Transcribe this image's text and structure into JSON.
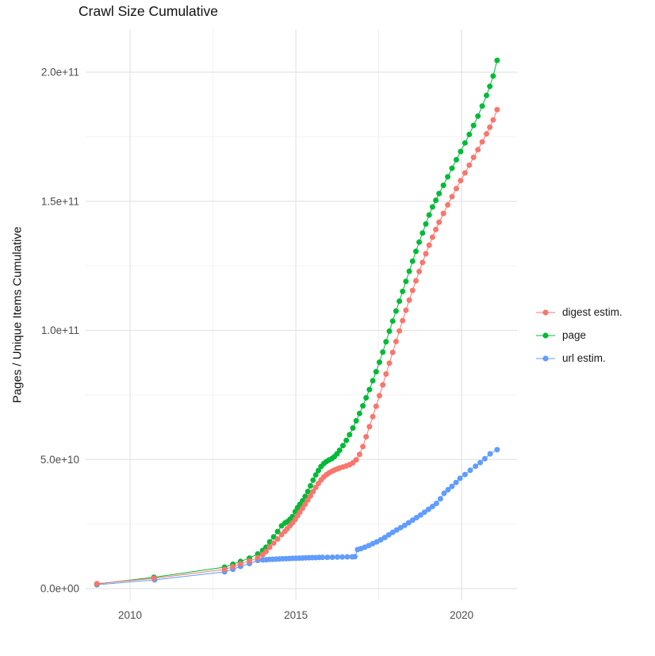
{
  "title": "Crawl Size Cumulative",
  "y_axis_title": "Pages / Unique Items Cumulative",
  "chart_data": {
    "type": "line",
    "title": "Crawl Size Cumulative",
    "xlabel": "",
    "ylabel": "Pages / Unique Items Cumulative",
    "value_unit": "y values in billions (1e9) of pages / unique items",
    "x_domain": [
      2008.66,
      2021.67
    ],
    "y_domain_e9": [
      -4.6,
      216.6
    ],
    "grid": true,
    "legend_position": "right",
    "x_ticks": [
      {
        "year": 2010,
        "label": "2010"
      },
      {
        "year": 2015,
        "label": "2015"
      },
      {
        "year": 2020,
        "label": "2020"
      }
    ],
    "x_minor": [
      2012.5,
      2017.5
    ],
    "y_ticks": [
      {
        "value_e9": 0,
        "label": "0.0e+00"
      },
      {
        "value_e9": 50,
        "label": "5.0e+10"
      },
      {
        "value_e9": 100,
        "label": "1.0e+11"
      },
      {
        "value_e9": 150,
        "label": "1.5e+11"
      },
      {
        "value_e9": 200,
        "label": "2.0e+11"
      }
    ],
    "y_minor": [
      25,
      75,
      125,
      175
    ],
    "draw_order": [
      2,
      1,
      0
    ],
    "series": [
      {
        "name": "digest estim.",
        "color": "#F8766D",
        "points": [
          [
            2009.0,
            1.9
          ],
          [
            2010.72,
            4.0
          ],
          [
            2012.85,
            7.4
          ],
          [
            2013.1,
            8.5
          ],
          [
            2013.33,
            9.6
          ],
          [
            2013.6,
            10.7
          ],
          [
            2013.85,
            11.9
          ],
          [
            2014.0,
            13.2
          ],
          [
            2014.1,
            14.4
          ],
          [
            2014.21,
            16.0
          ],
          [
            2014.33,
            17.6
          ],
          [
            2014.45,
            19.2
          ],
          [
            2014.57,
            20.9
          ],
          [
            2014.67,
            22.2
          ],
          [
            2014.74,
            23.2
          ],
          [
            2014.82,
            24.3
          ],
          [
            2014.9,
            25.5
          ],
          [
            2014.98,
            26.8
          ],
          [
            2015.05,
            28.2
          ],
          [
            2015.12,
            29.6
          ],
          [
            2015.2,
            31.1
          ],
          [
            2015.28,
            32.7
          ],
          [
            2015.36,
            34.3
          ],
          [
            2015.44,
            35.9
          ],
          [
            2015.52,
            37.6
          ],
          [
            2015.6,
            39.2
          ],
          [
            2015.68,
            40.7
          ],
          [
            2015.76,
            42.1
          ],
          [
            2015.84,
            43.2
          ],
          [
            2015.92,
            44.1
          ],
          [
            2016.0,
            44.8
          ],
          [
            2016.08,
            45.4
          ],
          [
            2016.16,
            45.9
          ],
          [
            2016.24,
            46.3
          ],
          [
            2016.32,
            46.7
          ],
          [
            2016.42,
            47.1
          ],
          [
            2016.52,
            47.5
          ],
          [
            2016.62,
            48.0
          ],
          [
            2016.72,
            48.7
          ],
          [
            2016.82,
            49.9
          ],
          [
            2016.92,
            52.0
          ],
          [
            2017.02,
            55.0
          ],
          [
            2017.12,
            58.8
          ],
          [
            2017.22,
            62.7
          ],
          [
            2017.32,
            66.6
          ],
          [
            2017.42,
            70.6
          ],
          [
            2017.52,
            74.7
          ],
          [
            2017.62,
            78.9
          ],
          [
            2017.72,
            83.1
          ],
          [
            2017.82,
            87.3
          ],
          [
            2017.92,
            91.5
          ],
          [
            2018.02,
            95.7
          ],
          [
            2018.12,
            99.8
          ],
          [
            2018.22,
            103.8
          ],
          [
            2018.32,
            107.8
          ],
          [
            2018.42,
            111.7
          ],
          [
            2018.52,
            115.5
          ],
          [
            2018.62,
            119.2
          ],
          [
            2018.72,
            122.8
          ],
          [
            2018.82,
            126.3
          ],
          [
            2018.92,
            129.7
          ],
          [
            2019.02,
            133.0
          ],
          [
            2019.12,
            136.1
          ],
          [
            2019.22,
            139.1
          ],
          [
            2019.32,
            141.9
          ],
          [
            2019.45,
            145.3
          ],
          [
            2019.58,
            148.6
          ],
          [
            2019.71,
            151.8
          ],
          [
            2019.84,
            154.9
          ],
          [
            2019.97,
            158.0
          ],
          [
            2020.1,
            161.0
          ],
          [
            2020.23,
            164.0
          ],
          [
            2020.36,
            167.0
          ],
          [
            2020.49,
            170.0
          ],
          [
            2020.62,
            173.0
          ],
          [
            2020.75,
            176.1
          ],
          [
            2020.85,
            178.7
          ],
          [
            2020.95,
            181.5
          ],
          [
            2021.07,
            185.5
          ]
        ]
      },
      {
        "name": "page",
        "color": "#00BA38",
        "points": [
          [
            2009.0,
            1.8
          ],
          [
            2010.72,
            4.4
          ],
          [
            2012.85,
            8.3
          ],
          [
            2013.1,
            9.4
          ],
          [
            2013.33,
            10.5
          ],
          [
            2013.6,
            11.8
          ],
          [
            2013.85,
            13.4
          ],
          [
            2014.0,
            14.8
          ],
          [
            2014.1,
            16.0
          ],
          [
            2014.21,
            18.1
          ],
          [
            2014.33,
            20.0
          ],
          [
            2014.45,
            22.1
          ],
          [
            2014.57,
            24.3
          ],
          [
            2014.67,
            25.4
          ],
          [
            2014.74,
            25.9
          ],
          [
            2014.82,
            26.8
          ],
          [
            2014.9,
            27.9
          ],
          [
            2014.98,
            29.8
          ],
          [
            2015.05,
            31.3
          ],
          [
            2015.12,
            32.6
          ],
          [
            2015.2,
            34.0
          ],
          [
            2015.28,
            35.7
          ],
          [
            2015.36,
            37.6
          ],
          [
            2015.44,
            39.8
          ],
          [
            2015.52,
            42.0
          ],
          [
            2015.6,
            44.0
          ],
          [
            2015.68,
            45.7
          ],
          [
            2015.76,
            47.3
          ],
          [
            2015.84,
            48.4
          ],
          [
            2015.92,
            49.2
          ],
          [
            2016.0,
            49.8
          ],
          [
            2016.08,
            50.3
          ],
          [
            2016.16,
            51.1
          ],
          [
            2016.24,
            52.2
          ],
          [
            2016.32,
            53.6
          ],
          [
            2016.42,
            55.4
          ],
          [
            2016.52,
            57.4
          ],
          [
            2016.62,
            59.6
          ],
          [
            2016.72,
            62.2
          ],
          [
            2016.82,
            65.0
          ],
          [
            2016.92,
            67.8
          ],
          [
            2017.02,
            70.8
          ],
          [
            2017.12,
            73.9
          ],
          [
            2017.22,
            77.1
          ],
          [
            2017.32,
            80.5
          ],
          [
            2017.42,
            84.0
          ],
          [
            2017.52,
            87.7
          ],
          [
            2017.62,
            91.6
          ],
          [
            2017.72,
            95.6
          ],
          [
            2017.82,
            99.7
          ],
          [
            2017.92,
            103.6
          ],
          [
            2018.02,
            107.5
          ],
          [
            2018.12,
            111.3
          ],
          [
            2018.22,
            115.1
          ],
          [
            2018.32,
            119.0
          ],
          [
            2018.42,
            122.9
          ],
          [
            2018.52,
            126.8
          ],
          [
            2018.62,
            130.6
          ],
          [
            2018.72,
            134.2
          ],
          [
            2018.82,
            137.7
          ],
          [
            2018.92,
            141.2
          ],
          [
            2019.02,
            144.7
          ],
          [
            2019.12,
            147.8
          ],
          [
            2019.22,
            150.4
          ],
          [
            2019.32,
            153.0
          ],
          [
            2019.45,
            156.2
          ],
          [
            2019.58,
            159.5
          ],
          [
            2019.71,
            162.8
          ],
          [
            2019.84,
            166.1
          ],
          [
            2019.97,
            169.3
          ],
          [
            2020.1,
            172.6
          ],
          [
            2020.23,
            175.9
          ],
          [
            2020.36,
            179.4
          ],
          [
            2020.49,
            183.0
          ],
          [
            2020.62,
            186.9
          ],
          [
            2020.75,
            191.0
          ],
          [
            2020.85,
            194.5
          ],
          [
            2020.95,
            198.5
          ],
          [
            2021.07,
            204.6
          ]
        ]
      },
      {
        "name": "url estim.",
        "color": "#619CFF",
        "points": [
          [
            2009.0,
            1.5
          ],
          [
            2010.74,
            3.4
          ],
          [
            2012.85,
            6.5
          ],
          [
            2013.1,
            7.5
          ],
          [
            2013.33,
            8.6
          ],
          [
            2013.6,
            9.7
          ],
          [
            2013.85,
            10.9
          ],
          [
            2014.0,
            11.1
          ],
          [
            2014.1,
            11.2
          ],
          [
            2014.2,
            11.3
          ],
          [
            2014.3,
            11.35
          ],
          [
            2014.4,
            11.4
          ],
          [
            2014.5,
            11.5
          ],
          [
            2014.6,
            11.55
          ],
          [
            2014.7,
            11.6
          ],
          [
            2014.8,
            11.65
          ],
          [
            2014.9,
            11.7
          ],
          [
            2015.0,
            11.75
          ],
          [
            2015.1,
            11.8
          ],
          [
            2015.2,
            11.85
          ],
          [
            2015.3,
            11.9
          ],
          [
            2015.4,
            11.95
          ],
          [
            2015.5,
            12.0
          ],
          [
            2015.6,
            12.0
          ],
          [
            2015.7,
            12.05
          ],
          [
            2015.8,
            12.1
          ],
          [
            2015.95,
            12.1
          ],
          [
            2016.1,
            12.15
          ],
          [
            2016.25,
            12.2
          ],
          [
            2016.4,
            12.25
          ],
          [
            2016.55,
            12.3
          ],
          [
            2016.7,
            12.3
          ],
          [
            2016.78,
            12.35
          ],
          [
            2016.86,
            15.1
          ],
          [
            2016.96,
            15.5
          ],
          [
            2017.08,
            16.0
          ],
          [
            2017.2,
            16.7
          ],
          [
            2017.32,
            17.4
          ],
          [
            2017.44,
            18.1
          ],
          [
            2017.56,
            18.9
          ],
          [
            2017.68,
            19.8
          ],
          [
            2017.8,
            20.8
          ],
          [
            2017.92,
            21.8
          ],
          [
            2018.04,
            22.7
          ],
          [
            2018.16,
            23.6
          ],
          [
            2018.28,
            24.5
          ],
          [
            2018.4,
            25.5
          ],
          [
            2018.52,
            26.5
          ],
          [
            2018.64,
            27.5
          ],
          [
            2018.76,
            28.5
          ],
          [
            2018.88,
            29.6
          ],
          [
            2019.0,
            30.7
          ],
          [
            2019.12,
            31.8
          ],
          [
            2019.24,
            33.0
          ],
          [
            2019.36,
            34.8
          ],
          [
            2019.47,
            36.9
          ],
          [
            2019.59,
            38.3
          ],
          [
            2019.71,
            39.6
          ],
          [
            2019.83,
            41.1
          ],
          [
            2019.95,
            42.7
          ],
          [
            2020.1,
            44.2
          ],
          [
            2020.26,
            45.8
          ],
          [
            2020.42,
            47.4
          ],
          [
            2020.56,
            48.8
          ],
          [
            2020.7,
            50.3
          ],
          [
            2020.86,
            52.2
          ],
          [
            2021.07,
            53.8
          ]
        ]
      }
    ]
  }
}
